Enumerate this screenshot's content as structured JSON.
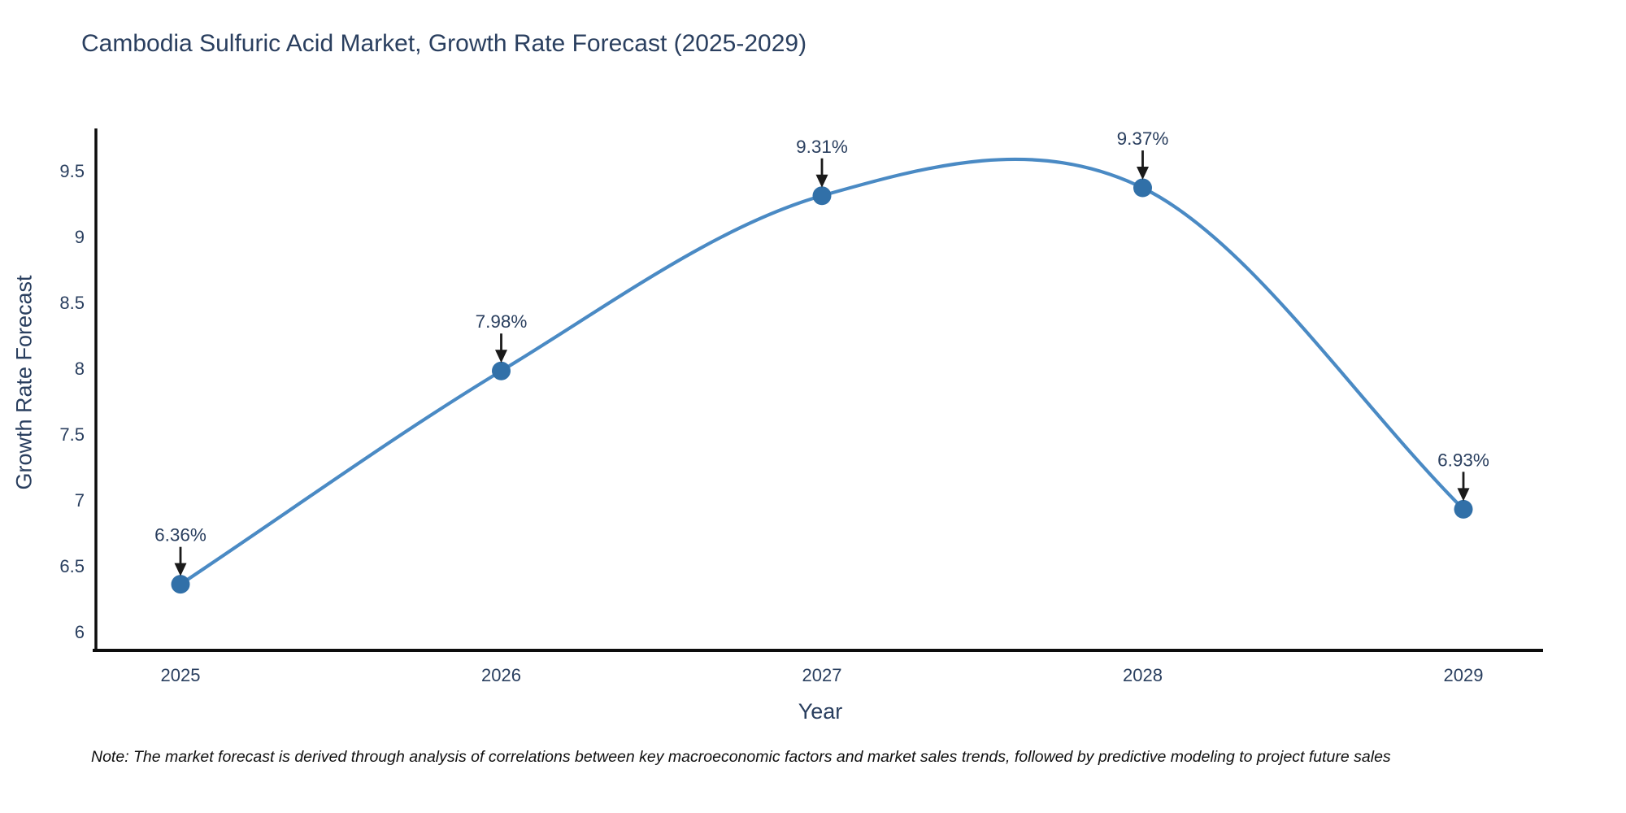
{
  "title": "Cambodia Sulfuric Acid Market, Growth Rate Forecast (2025-2029)",
  "note": "Note: The market forecast is derived through analysis of correlations between key macroeconomic factors and market sales trends, followed by predictive modeling to project future sales",
  "chart_data": {
    "type": "line",
    "title": "Cambodia Sulfuric Acid Market, Growth Rate Forecast (2025-2029)",
    "x": [
      "2025",
      "2026",
      "2027",
      "2028",
      "2029"
    ],
    "values": [
      6.36,
      7.98,
      9.31,
      9.37,
      6.93
    ],
    "point_labels": [
      "6.36%",
      "7.98%",
      "9.31%",
      "9.37%",
      "6.93%"
    ],
    "xlabel": "Year",
    "ylabel": "Growth Rate Forecast",
    "yticks": [
      6,
      6.5,
      7,
      7.5,
      8,
      8.5,
      9,
      9.5
    ],
    "ylim": [
      5.86,
      9.83
    ],
    "line_shape": "spline",
    "grid": false,
    "legend": "none",
    "colors": {
      "line": "#4a8ac4",
      "marker": "#3170a8",
      "axis": "#0d0d0d",
      "text": "#2a3f5f",
      "arrow": "#1a1a1a"
    }
  }
}
